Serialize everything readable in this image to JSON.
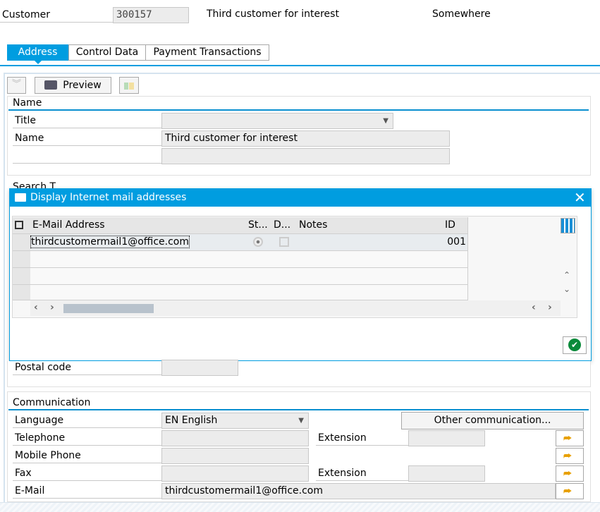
{
  "header": {
    "customer_label": "Customer",
    "customer_number": "300157",
    "customer_name": "Third customer for interest",
    "city": "Somewhere"
  },
  "tabs": [
    {
      "label": "Address",
      "active": true
    },
    {
      "label": "Control Data"
    },
    {
      "label": "Payment Transactions"
    }
  ],
  "toolbar": {
    "preview_label": "Preview"
  },
  "name_group": {
    "title": "Name",
    "title_label": "Title",
    "title_value": "",
    "name_label": "Name",
    "name_value": "Third customer for interest",
    "name2_value": ""
  },
  "background_peek": "Search T",
  "dialog": {
    "title": "Display Internet mail addresses",
    "columns": [
      "E-Mail Address",
      "St...",
      "D...",
      "Notes",
      "ID"
    ],
    "rows": [
      {
        "email": "thirdcustomermail1@office.com",
        "standard": true,
        "do_not_use": false,
        "notes": "",
        "id": "001"
      }
    ]
  },
  "address": {
    "postal_code_label": "Postal code",
    "postal_code_value": ""
  },
  "communication": {
    "title": "Communication",
    "language_label": "Language",
    "language_value": "EN English",
    "other_button": "Other communication...",
    "telephone_label": "Telephone",
    "extension_label": "Extension",
    "mobile_label": "Mobile Phone",
    "fax_label": "Fax",
    "fax_extension_label": "Extension",
    "email_label": "E-Mail",
    "email_value": "thirdcustomermail1@office.com"
  },
  "colors": {
    "accent": "#009de0",
    "ok": "#0a8a3a"
  }
}
